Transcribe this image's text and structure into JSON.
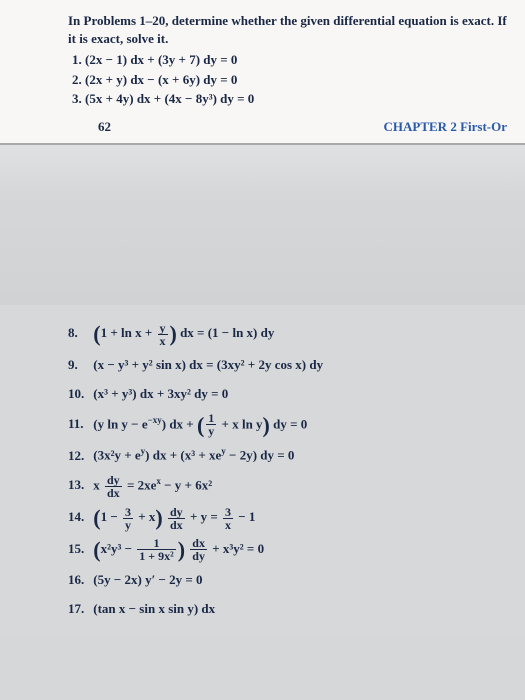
{
  "instruction": "In Problems 1–20, determine whether the given differential equation is exact. If it is exact, solve it.",
  "top_problems": [
    {
      "n": "1.",
      "eq": "(2x − 1) dx + (3y + 7) dy = 0"
    },
    {
      "n": "2.",
      "eq": "(2x + y) dx − (x + 6y) dy = 0"
    },
    {
      "n": "3.",
      "eq": "(5x + 4y) dx + (4x − 8y³) dy = 0"
    }
  ],
  "page_num": "62",
  "chapter": "CHAPTER 2 First-Or",
  "bottom_problems": [
    {
      "n": "8.",
      "html": "<span class='big'>(</span>1 + ln x + <span class='frac'><span class='t'>y</span><span class='b'>x</span></span><span class='big'>)</span> dx = (1 − ln x) dy"
    },
    {
      "n": "9.",
      "html": "(x − y³ + y² sin x) dx = (3xy² + 2y cos x) dy"
    },
    {
      "n": "10.",
      "html": "(x³ + y³) dx + 3xy² dy = 0"
    },
    {
      "n": "11.",
      "html": "(y ln y − e<sup>−xy</sup>) dx + <span class='big'>(</span><span class='frac'><span class='t'>1</span><span class='b'>y</span></span> + x ln y<span class='big'>)</span> dy = 0"
    },
    {
      "n": "12.",
      "html": "(3x²y + e<sup>y</sup>) dx + (x³ + xe<sup>y</sup> − 2y) dy = 0"
    },
    {
      "n": "13.",
      "html": "x <span class='frac'><span class='t'>dy</span><span class='b'>dx</span></span> = 2xe<sup>x</sup> − y + 6x²"
    },
    {
      "n": "14.",
      "html": "<span class='big'>(</span>1 − <span class='frac'><span class='t'>3</span><span class='b'>y</span></span> + x<span class='big'>)</span> <span class='frac'><span class='t'>dy</span><span class='b'>dx</span></span> + y = <span class='frac'><span class='t'>3</span><span class='b'>x</span></span> − 1"
    },
    {
      "n": "15.",
      "html": "<span class='big'>(</span>x²y³ − <span class='frac'><span class='t'>1</span><span class='b'>1 + 9x²</span></span><span class='big'>)</span> <span class='frac'><span class='t'>dx</span><span class='b'>dy</span></span> + x³y² = 0"
    },
    {
      "n": "16.",
      "html": "(5y − 2x) y′ − 2y = 0"
    },
    {
      "n": "17.",
      "html": "(tan x − sin x sin y) dx"
    }
  ]
}
